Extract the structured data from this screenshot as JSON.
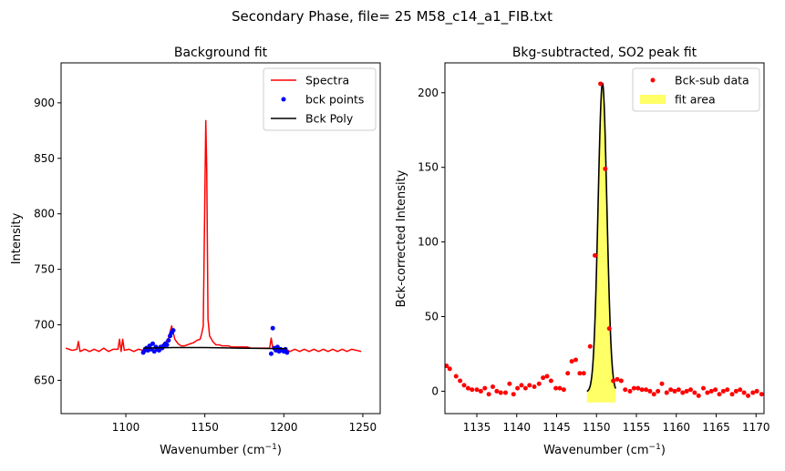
{
  "figure_title": "Secondary Phase, file= 25 M58_c14_a1_FIB.txt",
  "chart_data": [
    {
      "type": "line",
      "title": "Background fit",
      "xlabel": "Wavenumber (cm",
      "xlabel_sup": "−1",
      "xlabel_end": ")",
      "ylabel": "Intensity",
      "xlim": [
        1059,
        1261
      ],
      "ylim": [
        620,
        936
      ],
      "xticks": [
        1100,
        1150,
        1200,
        1250
      ],
      "yticks": [
        650,
        700,
        750,
        800,
        850,
        900
      ],
      "legend_position": "top-right",
      "legend": [
        {
          "label": "Spectra",
          "color": "#ff0000",
          "marker": "line"
        },
        {
          "label": "bck points",
          "color": "#0000ff",
          "marker": "dot"
        },
        {
          "label": "Bck Poly",
          "color": "#000000",
          "marker": "line"
        }
      ],
      "series": [
        {
          "name": "Spectra",
          "color": "#ff0000",
          "style": "line",
          "points": [
            [
              1062,
              679
            ],
            [
              1066,
              677
            ],
            [
              1069,
              678
            ],
            [
              1070,
              685
            ],
            [
              1071,
              676
            ],
            [
              1074,
              678
            ],
            [
              1077,
              676
            ],
            [
              1080,
              678
            ],
            [
              1083,
              676
            ],
            [
              1086,
              679
            ],
            [
              1089,
              676
            ],
            [
              1092,
              678
            ],
            [
              1095,
              678
            ],
            [
              1096,
              687
            ],
            [
              1097,
              676
            ],
            [
              1098,
              687
            ],
            [
              1099,
              677
            ],
            [
              1102,
              678
            ],
            [
              1105,
              676
            ],
            [
              1108,
              678
            ],
            [
              1111,
              677
            ],
            [
              1113,
              679
            ],
            [
              1115,
              681
            ],
            [
              1117,
              678
            ],
            [
              1119,
              680
            ],
            [
              1121,
              679
            ],
            [
              1123,
              682
            ],
            [
              1125,
              684
            ],
            [
              1127,
              688
            ],
            [
              1129,
              699
            ],
            [
              1131,
              687
            ],
            [
              1133,
              683
            ],
            [
              1135,
              681
            ],
            [
              1137,
              681
            ],
            [
              1139,
              682
            ],
            [
              1141,
              683
            ],
            [
              1143,
              684
            ],
            [
              1145,
              686
            ],
            [
              1147,
              687
            ],
            [
              1148,
              692
            ],
            [
              1149,
              699
            ],
            [
              1150,
              815
            ],
            [
              1150.6,
              884
            ],
            [
              1151.2,
              840
            ],
            [
              1152,
              705
            ],
            [
              1153,
              690
            ],
            [
              1155,
              685
            ],
            [
              1157,
              682
            ],
            [
              1159,
              682
            ],
            [
              1161,
              681
            ],
            [
              1163,
              681
            ],
            [
              1165,
              681
            ],
            [
              1167,
              680
            ],
            [
              1169,
              680
            ],
            [
              1171,
              680
            ],
            [
              1173,
              680
            ],
            [
              1175,
              680
            ],
            [
              1177,
              680
            ],
            [
              1179,
              679
            ],
            [
              1181,
              679
            ],
            [
              1183,
              679
            ],
            [
              1185,
              679
            ],
            [
              1187,
              679
            ],
            [
              1189,
              679
            ],
            [
              1191,
              679
            ],
            [
              1192,
              688
            ],
            [
              1193,
              679
            ],
            [
              1195,
              677
            ],
            [
              1198,
              676
            ],
            [
              1201,
              678
            ],
            [
              1204,
              676
            ],
            [
              1207,
              678
            ],
            [
              1210,
              676
            ],
            [
              1213,
              678
            ],
            [
              1216,
              676
            ],
            [
              1219,
              678
            ],
            [
              1222,
              676
            ],
            [
              1225,
              678
            ],
            [
              1228,
              676
            ],
            [
              1231,
              678
            ],
            [
              1234,
              676
            ],
            [
              1237,
              678
            ],
            [
              1240,
              676
            ],
            [
              1243,
              678
            ],
            [
              1246,
              677
            ],
            [
              1249,
              676
            ]
          ]
        },
        {
          "name": "bck points",
          "color": "#0000ff",
          "style": "dot",
          "points": [
            [
              1111,
              675
            ],
            [
              1112,
              677
            ],
            [
              1113,
              679
            ],
            [
              1114,
              677
            ],
            [
              1115,
              681
            ],
            [
              1116,
              678
            ],
            [
              1117,
              683
            ],
            [
              1118,
              676
            ],
            [
              1119,
              680
            ],
            [
              1120,
              678
            ],
            [
              1121,
              677
            ],
            [
              1122,
              680
            ],
            [
              1123,
              679
            ],
            [
              1124,
              681
            ],
            [
              1125,
              683
            ],
            [
              1126,
              682
            ],
            [
              1127,
              686
            ],
            [
              1128,
              690
            ],
            [
              1129,
              693
            ],
            [
              1130,
              695
            ],
            [
              1192,
              674
            ],
            [
              1193,
              697
            ],
            [
              1194,
              679
            ],
            [
              1195,
              677
            ],
            [
              1196,
              680
            ],
            [
              1197,
              676
            ],
            [
              1198,
              678
            ],
            [
              1199,
              677
            ],
            [
              1200,
              676
            ],
            [
              1201,
              678
            ],
            [
              1202,
              675
            ]
          ]
        },
        {
          "name": "Bck Poly",
          "color": "#000000",
          "style": "line",
          "points": [
            [
              1111,
              679
            ],
            [
              1130,
              679.5
            ],
            [
              1150,
              679.5
            ],
            [
              1170,
              679
            ],
            [
              1202,
              678.5
            ]
          ]
        }
      ]
    },
    {
      "type": "scatter",
      "title": "Bkg-subtracted, SO2 peak fit",
      "xlabel": "Wavenumber (cm",
      "xlabel_sup": "−1",
      "xlabel_end": ")",
      "ylabel": "Bck-corrected Intensity",
      "xlim": [
        1131,
        1171
      ],
      "ylim": [
        -15,
        220
      ],
      "xticks": [
        1135,
        1140,
        1145,
        1150,
        1155,
        1160,
        1165,
        1170
      ],
      "yticks": [
        0,
        50,
        100,
        150,
        200
      ],
      "legend_position": "top-right",
      "legend": [
        {
          "label": "Bck-sub data",
          "color": "#ff0000",
          "marker": "dot"
        },
        {
          "label": "fit area",
          "color": "#ffff66",
          "marker": "patch"
        }
      ],
      "fit_area": {
        "x_min": 1148.8,
        "x_max": 1152.4,
        "y_min": -0.5,
        "color": "#ffff66"
      },
      "fit_curve": {
        "center": 1150.75,
        "amplitude": 207,
        "sigma": 0.55,
        "x_min": 1148.8,
        "x_max": 1152.4,
        "color": "#000000"
      },
      "series": [
        {
          "name": "Bck-sub data",
          "color": "#ff0000",
          "style": "dot",
          "points": [
            [
              1131.2,
              17
            ],
            [
              1131.6,
              15
            ],
            [
              1132.4,
              10
            ],
            [
              1132.9,
              7
            ],
            [
              1133.4,
              4
            ],
            [
              1133.9,
              2
            ],
            [
              1134.4,
              1
            ],
            [
              1135.0,
              1
            ],
            [
              1135.5,
              0
            ],
            [
              1136.0,
              2
            ],
            [
              1136.5,
              -2
            ],
            [
              1137.0,
              3
            ],
            [
              1137.5,
              0
            ],
            [
              1138.0,
              -1
            ],
            [
              1138.6,
              -1
            ],
            [
              1139.1,
              5
            ],
            [
              1139.6,
              -2
            ],
            [
              1140.1,
              2
            ],
            [
              1140.6,
              4
            ],
            [
              1141.1,
              2
            ],
            [
              1141.6,
              4
            ],
            [
              1142.2,
              3
            ],
            [
              1142.8,
              5
            ],
            [
              1143.3,
              9
            ],
            [
              1143.8,
              10
            ],
            [
              1144.3,
              7
            ],
            [
              1144.9,
              2
            ],
            [
              1145.4,
              2
            ],
            [
              1145.9,
              1
            ],
            [
              1146.4,
              12
            ],
            [
              1146.9,
              20
            ],
            [
              1147.4,
              21
            ],
            [
              1147.9,
              12
            ],
            [
              1148.4,
              12
            ],
            [
              1149.2,
              30
            ],
            [
              1149.8,
              91
            ],
            [
              1150.5,
              206
            ],
            [
              1151.1,
              149
            ],
            [
              1151.6,
              42
            ],
            [
              1152.1,
              7
            ],
            [
              1152.6,
              8
            ],
            [
              1153.1,
              7
            ],
            [
              1153.6,
              1
            ],
            [
              1154.2,
              0
            ],
            [
              1154.7,
              2
            ],
            [
              1155.2,
              2
            ],
            [
              1155.7,
              1
            ],
            [
              1156.2,
              1
            ],
            [
              1156.7,
              0
            ],
            [
              1157.2,
              -2
            ],
            [
              1157.7,
              0
            ],
            [
              1158.2,
              5
            ],
            [
              1158.8,
              -1
            ],
            [
              1159.3,
              1
            ],
            [
              1159.8,
              0
            ],
            [
              1160.3,
              1
            ],
            [
              1160.8,
              -1
            ],
            [
              1161.3,
              0
            ],
            [
              1161.8,
              1
            ],
            [
              1162.3,
              -1
            ],
            [
              1162.8,
              -3
            ],
            [
              1163.4,
              2
            ],
            [
              1163.9,
              -1
            ],
            [
              1164.4,
              0
            ],
            [
              1164.9,
              1
            ],
            [
              1165.4,
              -2
            ],
            [
              1165.9,
              0
            ],
            [
              1166.4,
              1
            ],
            [
              1167.0,
              -2
            ],
            [
              1167.5,
              0
            ],
            [
              1168.0,
              1
            ],
            [
              1168.5,
              -1
            ],
            [
              1169.0,
              -3
            ],
            [
              1169.6,
              -1
            ],
            [
              1170.1,
              0
            ],
            [
              1170.7,
              -2
            ]
          ]
        }
      ]
    }
  ]
}
